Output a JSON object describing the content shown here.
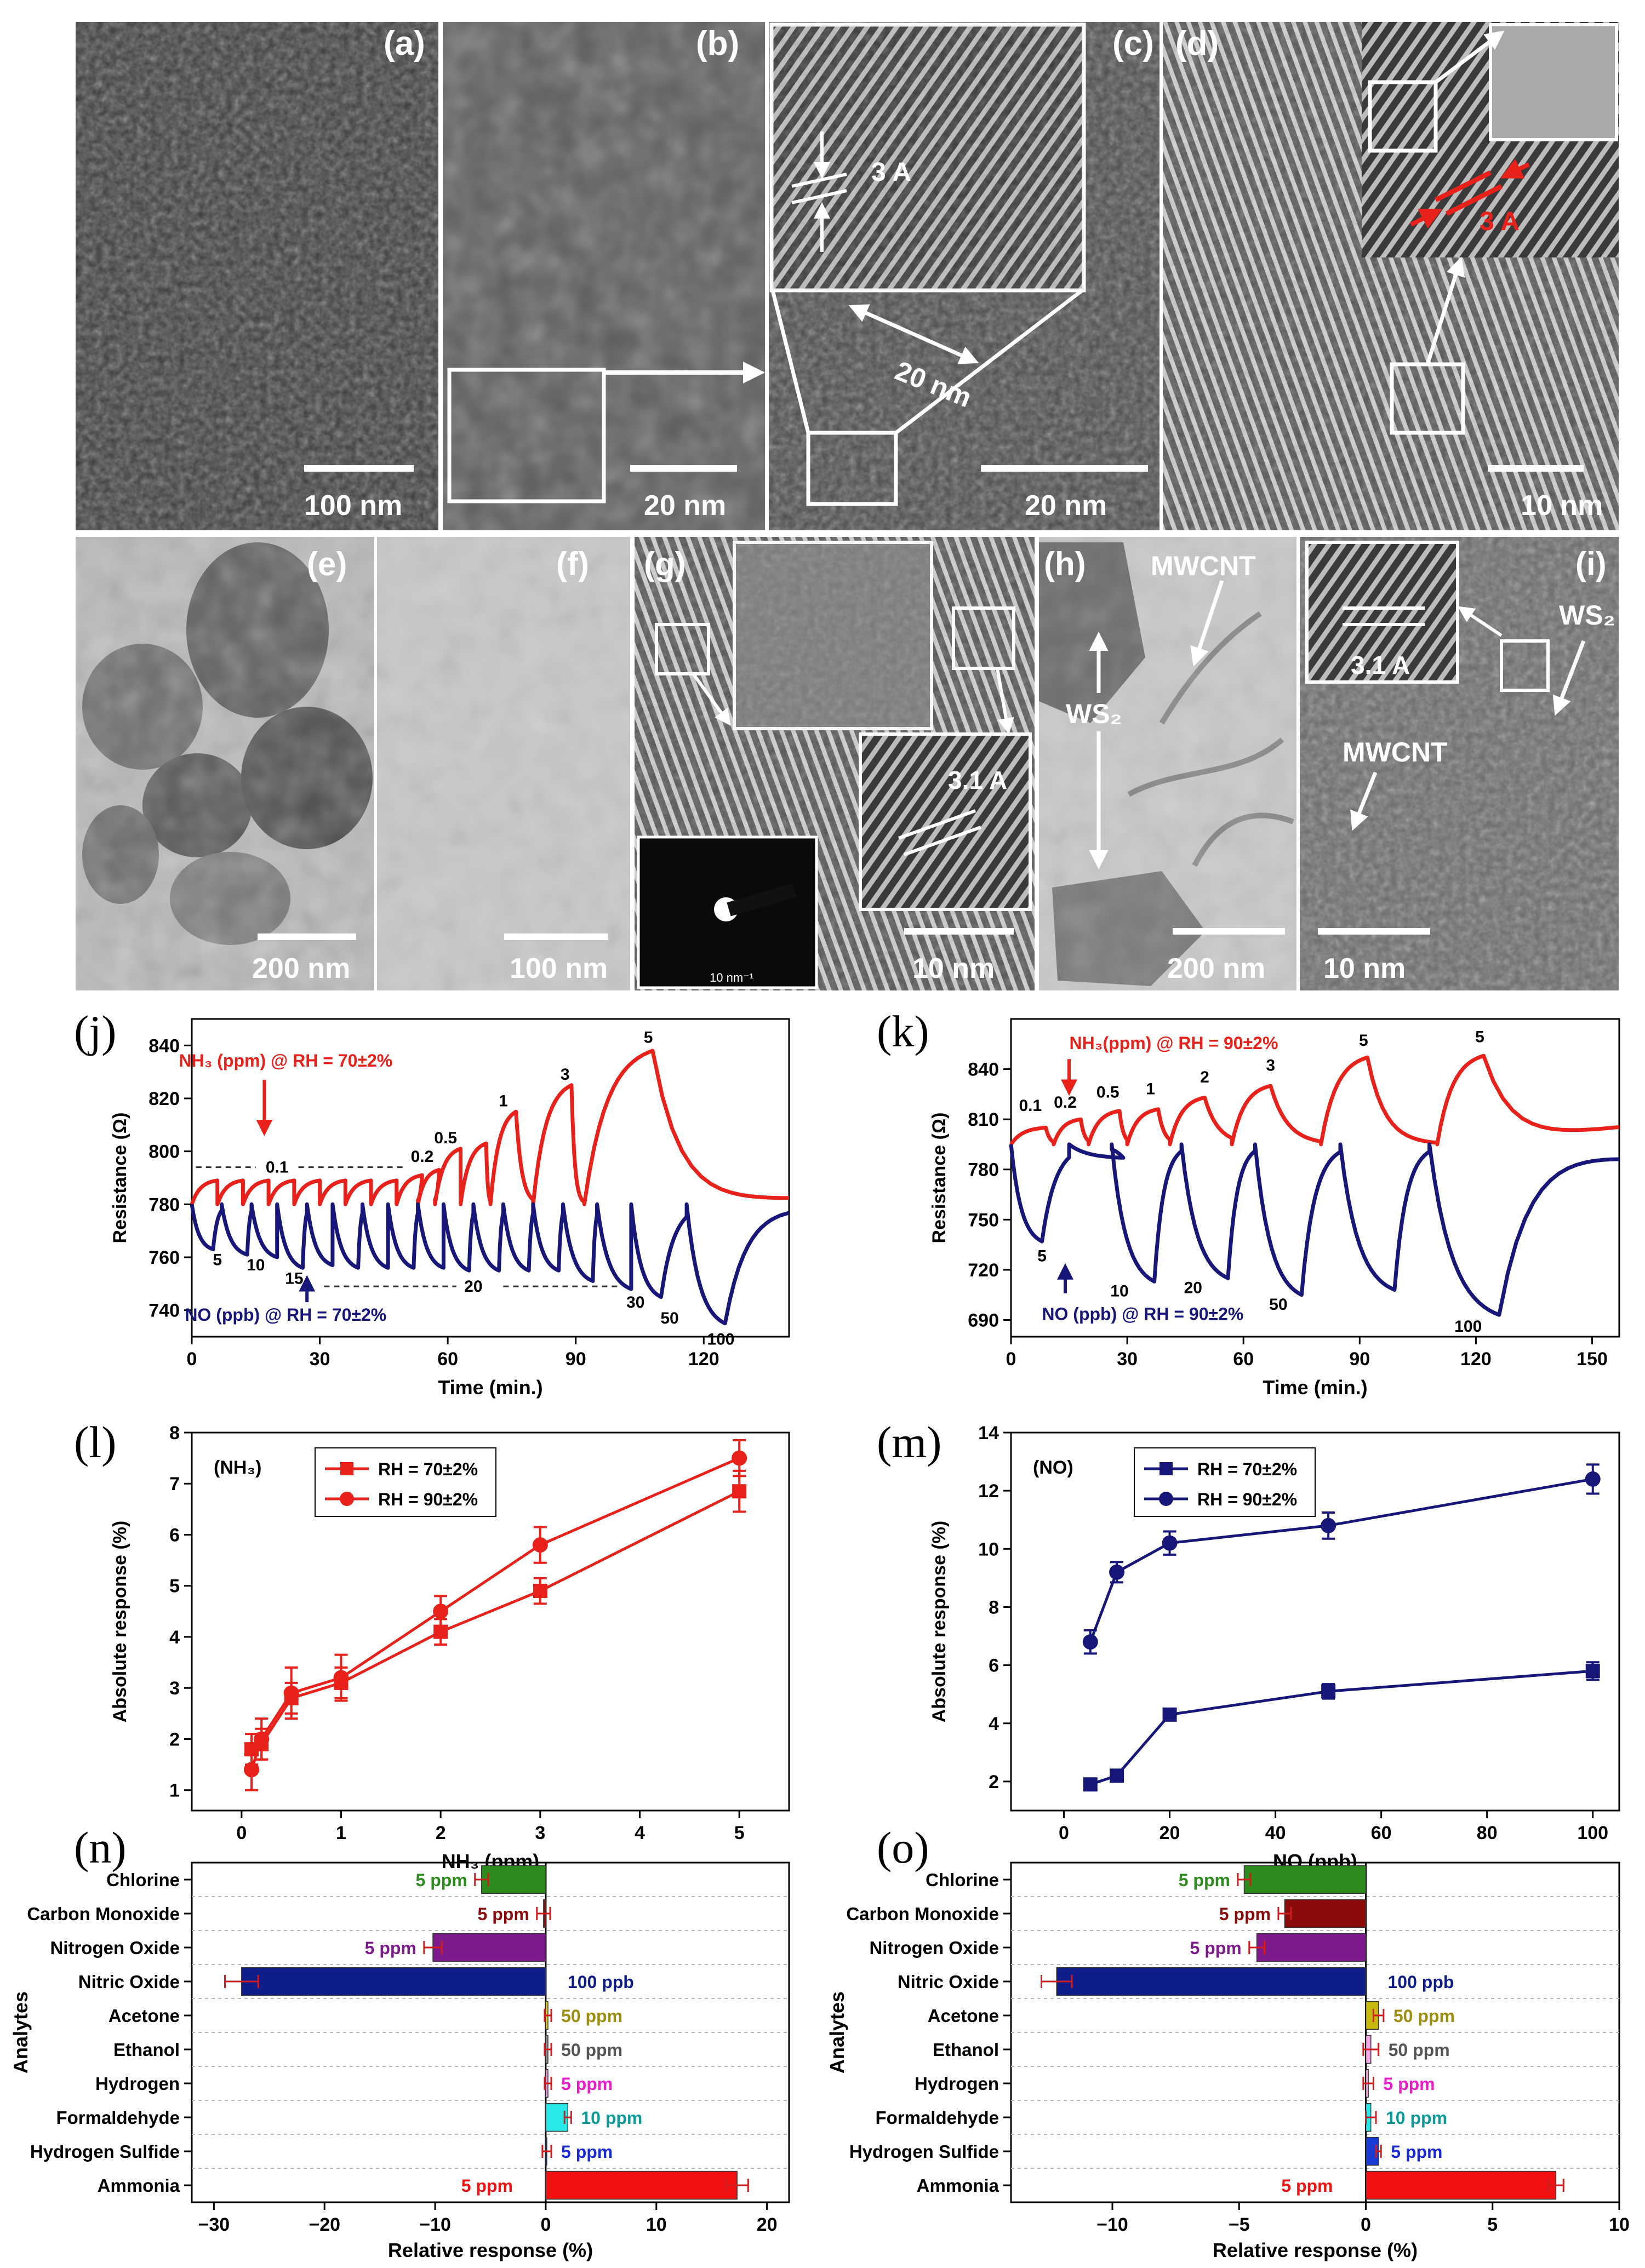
{
  "micrographs": [
    {
      "id": "a",
      "label": "(a)",
      "scale": "100 nm",
      "tone": "#3b3b3b"
    },
    {
      "id": "b",
      "label": "(b)",
      "scale": "20 nm",
      "tone": "#555555"
    },
    {
      "id": "c",
      "label": "(c)",
      "scale": "20 nm",
      "tone": "#4a4a4a",
      "inset_spacing": "3 A",
      "feature": "20 nm"
    },
    {
      "id": "d",
      "label": "(d)",
      "scale": "10 nm",
      "tone": "#454545",
      "inset_spacing": "3 A"
    },
    {
      "id": "e",
      "label": "(e)",
      "scale": "200 nm",
      "tone": "#8a8a8a"
    },
    {
      "id": "f",
      "label": "(f)",
      "scale": "100 nm",
      "tone": "#b5b5b5"
    },
    {
      "id": "g",
      "label": "(g)",
      "scale": "10 nm",
      "tone": "#6e6e6e",
      "inset_spacing": "3.1 A",
      "saed_scale": "10 nm⁻¹"
    },
    {
      "id": "h",
      "label": "(h)",
      "scale": "200 nm",
      "tone": "#a8a8a8",
      "annot1": "MWCNT",
      "annot2": "WS₂"
    },
    {
      "id": "i",
      "label": "(i)",
      "scale": "10 nm",
      "tone": "#6a6a6a",
      "inset_spacing": "3.1 A",
      "annot1": "WS₂",
      "annot2": "MWCNT"
    }
  ],
  "chart_data": [
    {
      "panel": "(j)",
      "type": "line",
      "xlabel": "Time (min.)",
      "ylabel": "Resistance (Ω)",
      "xlim": [
        0,
        140
      ],
      "ylim": [
        730,
        850
      ],
      "xticks": [
        0,
        30,
        60,
        90,
        120
      ],
      "yticks": [
        740,
        760,
        780,
        800,
        820,
        840
      ],
      "series": [
        {
          "name": "NH₃ (ppm) @ RH = 70±2%",
          "color": "#e8211b",
          "baseline": 780,
          "end": 782,
          "pulses": [
            [
              0,
              6,
              789,
              2
            ],
            [
              6,
              6,
              789,
              2
            ],
            [
              12,
              6,
              789,
              2
            ],
            [
              18,
              6,
              789,
              2
            ],
            [
              24,
              6,
              789,
              2
            ],
            [
              30,
              6,
              789,
              2
            ],
            [
              36,
              6,
              789,
              2
            ],
            [
              42,
              6,
              789,
              2
            ],
            [
              48,
              6,
              791,
              2
            ],
            [
              53,
              5,
              793,
              2
            ],
            [
              57,
              6,
              801,
              2
            ],
            [
              63,
              6,
              803,
              3
            ],
            [
              70,
              6,
              815,
              3
            ],
            [
              80,
              9,
              825,
              4
            ],
            [
              92,
              16,
              838,
              5
            ]
          ]
        },
        {
          "name": "NO (ppb) @ RH = 70±2%",
          "color": "#17177a",
          "baseline": 780,
          "end": 779,
          "pulses": [
            [
              0,
              5,
              763,
              2
            ],
            [
              7,
              6,
              761,
              2
            ],
            [
              14,
              6,
              760,
              2
            ],
            [
              20,
              6,
              756,
              2
            ],
            [
              27,
              6,
              757,
              2
            ],
            [
              33,
              6,
              756,
              2
            ],
            [
              40,
              6,
              756,
              2
            ],
            [
              46,
              6,
              756,
              2
            ],
            [
              53,
              6,
              756,
              2
            ],
            [
              59,
              6,
              755,
              2
            ],
            [
              66,
              6,
              755,
              2
            ],
            [
              73,
              6,
              755,
              2
            ],
            [
              80,
              6,
              755,
              2
            ],
            [
              87,
              7,
              751,
              2
            ],
            [
              95,
              8,
              748,
              2
            ],
            [
              103,
              7,
              745,
              2
            ],
            [
              116,
              9,
              735,
              3
            ]
          ]
        }
      ],
      "annotations": [
        "NH₃ (ppm) @ RH = 70±2%",
        "0.1",
        "0.2",
        "0.5",
        "1",
        "3",
        "5",
        "5",
        "10",
        "15",
        "20",
        "30",
        "50",
        "100",
        "NO (ppb) @ RH = 70±2%"
      ]
    },
    {
      "panel": "(k)",
      "type": "line",
      "xlabel": "Time (min.)",
      "ylabel": "Resistance (Ω)",
      "xlim": [
        0,
        157
      ],
      "ylim": [
        680,
        870
      ],
      "xticks": [
        0,
        30,
        60,
        90,
        120,
        150
      ],
      "yticks": [
        690,
        720,
        750,
        780,
        810,
        840
      ],
      "series": [
        {
          "name": "NH₃(ppm) @ RH = 90±2%",
          "color": "#e8211b",
          "baseline": 795,
          "end": 805,
          "pulses": [
            [
              0,
              9,
              805,
              2
            ],
            [
              11,
              7,
              810,
              2
            ],
            [
              20,
              8,
              815,
              2
            ],
            [
              30,
              8,
              816,
              2
            ],
            [
              41,
              9,
              823,
              2
            ],
            [
              57,
              10,
              830,
              3
            ],
            [
              80,
              12,
              847,
              4
            ],
            [
              110,
              12,
              848,
              5
            ]
          ]
        },
        {
          "name": "NO (ppb) @ RH = 90±2%",
          "color": "#17177a",
          "baseline": 795,
          "end": 788,
          "pulses": [
            [
              0,
              8,
              737,
              2
            ],
            [
              15,
              14,
              787,
              1
            ],
            [
              26,
              11,
              713,
              3
            ],
            [
              44,
              12,
              715,
              3
            ],
            [
              63,
              12,
              705,
              3
            ],
            [
              85,
              14,
              708,
              3
            ],
            [
              108,
              18,
              693,
              4
            ]
          ]
        }
      ],
      "annotations": [
        "NH₃(ppm) @ RH = 90±2%",
        "0.1",
        "0.2",
        "0.5",
        "1",
        "2",
        "3",
        "5",
        "5",
        "5",
        "10",
        "20",
        "50",
        "100",
        "NO (ppb) @ RH = 90±2%"
      ]
    },
    {
      "panel": "(l)",
      "type": "line",
      "xlabel": "NH₃ (ppm)",
      "ylabel": "Absolute response (%)",
      "tag": "(NH₃)",
      "x": [
        0.1,
        0.2,
        0.5,
        1,
        2,
        3,
        5
      ],
      "xlim": [
        -0.5,
        5.5
      ],
      "ylim": [
        0.6,
        8
      ],
      "xticks": [
        0,
        1,
        2,
        3,
        4,
        5
      ],
      "yticks": [
        1,
        2,
        3,
        4,
        5,
        6,
        7,
        8
      ],
      "series": [
        {
          "name": "RH = 70±2%",
          "color": "#e8211b",
          "marker": "square",
          "values": [
            1.8,
            1.9,
            2.8,
            3.1,
            4.1,
            4.9,
            6.85
          ],
          "errors": [
            0.3,
            0.3,
            0.3,
            0.3,
            0.25,
            0.25,
            0.4
          ]
        },
        {
          "name": "RH = 90±2%",
          "color": "#e8211b",
          "marker": "circle",
          "values": [
            1.4,
            2.0,
            2.9,
            3.2,
            4.5,
            5.8,
            7.5
          ],
          "errors": [
            0.4,
            0.4,
            0.5,
            0.45,
            0.3,
            0.35,
            0.35
          ]
        }
      ]
    },
    {
      "panel": "(m)",
      "type": "line",
      "xlabel": "NO (ppb)",
      "ylabel": "Absolute response (%)",
      "tag": "(NO)",
      "x": [
        5,
        10,
        20,
        50,
        100
      ],
      "xlim": [
        -10,
        105
      ],
      "ylim": [
        1,
        14
      ],
      "xticks": [
        0,
        20,
        40,
        60,
        80,
        100
      ],
      "yticks": [
        2,
        4,
        6,
        8,
        10,
        12,
        14
      ],
      "series": [
        {
          "name": "RH = 70±2%",
          "color": "#17177a",
          "marker": "square",
          "values": [
            1.9,
            2.2,
            4.3,
            5.1,
            5.8
          ],
          "errors": [
            0.1,
            0.1,
            0.2,
            0.25,
            0.3
          ]
        },
        {
          "name": "RH = 90±2%",
          "color": "#17177a",
          "marker": "circle",
          "values": [
            6.8,
            9.2,
            10.2,
            10.8,
            12.4
          ],
          "errors": [
            0.4,
            0.35,
            0.4,
            0.45,
            0.5
          ]
        }
      ]
    },
    {
      "panel": "(n)",
      "type": "bar",
      "orientation": "horizontal",
      "xlabel": "Relative response (%)",
      "ylabel": "Analytes",
      "xlim": [
        -32,
        22
      ],
      "xticks": [
        -30,
        -20,
        -10,
        0,
        10,
        20
      ],
      "categories": [
        "Chlorine",
        "Carbon Monoxide",
        "Nitrogen Oxide",
        "Nitric Oxide",
        "Acetone",
        "Ethanol",
        "Hydrogen",
        "Formaldehyde",
        "Hydrogen Sulfide",
        "Ammonia"
      ],
      "values": [
        -5.8,
        -0.2,
        -10.2,
        -27.5,
        0.2,
        0.2,
        0.2,
        2.0,
        0.1,
        17.3
      ],
      "errors": [
        0.6,
        0.6,
        0.8,
        1.5,
        0.3,
        0.3,
        0.3,
        0.3,
        0.4,
        1.0
      ],
      "labels": [
        "5 ppm",
        "5 ppm",
        "5 ppm",
        "100 ppb",
        "50 ppm",
        "50 ppm",
        "5 ppm",
        "10 ppm",
        "5 ppm",
        "5 ppm"
      ],
      "colors": [
        "#2e8b1e",
        "#8b0a0a",
        "#7d1b8c",
        "#0f1d8a",
        "#f2e21a",
        "#999999",
        "#f4a8e8",
        "#29e8e8",
        "#1a3ad4",
        "#f21111"
      ],
      "labelColors": [
        "#2e8b1e",
        "#8b0a0a",
        "#7d1b8c",
        "#0f1d8a",
        "#9c8e10",
        "#555555",
        "#e91ec8",
        "#0f9a9a",
        "#1a2ad4",
        "#f21111"
      ]
    },
    {
      "panel": "(o)",
      "type": "bar",
      "orientation": "horizontal",
      "xlabel": "Relative response (%)",
      "ylabel": "Analytes",
      "xlim": [
        -14,
        10
      ],
      "xticks": [
        -10,
        -5,
        0,
        5,
        10
      ],
      "categories": [
        "Chlorine",
        "Carbon Monoxide",
        "Nitrogen Oxide",
        "Nitric Oxide",
        "Acetone",
        "Ethanol",
        "Hydrogen",
        "Formaldehyde",
        "Hydrogen Sulfide",
        "Ammonia"
      ],
      "values": [
        -4.8,
        -3.2,
        -4.3,
        -12.2,
        0.5,
        0.2,
        0.1,
        0.2,
        0.5,
        7.5
      ],
      "errors": [
        0.25,
        0.25,
        0.3,
        0.6,
        0.2,
        0.3,
        0.2,
        0.2,
        0.1,
        0.3
      ],
      "labels": [
        "5 ppm",
        "5 ppm",
        "5 ppm",
        "100 ppb",
        "50 ppm",
        "50 ppm",
        "5 ppm",
        "10 ppm",
        "5 ppm",
        "5 ppm"
      ],
      "colors": [
        "#2e8b1e",
        "#8b0a0a",
        "#7d1b8c",
        "#0f1d8a",
        "#c8b80e",
        "#f4a8e8",
        "#f4a8e8",
        "#29e8e8",
        "#1a3ad4",
        "#f21111"
      ],
      "labelColors": [
        "#2e8b1e",
        "#8b0a0a",
        "#7d1b8c",
        "#0f1d8a",
        "#9c8e10",
        "#555555",
        "#e91ec8",
        "#0f9a9a",
        "#1a2ad4",
        "#f21111"
      ]
    }
  ]
}
